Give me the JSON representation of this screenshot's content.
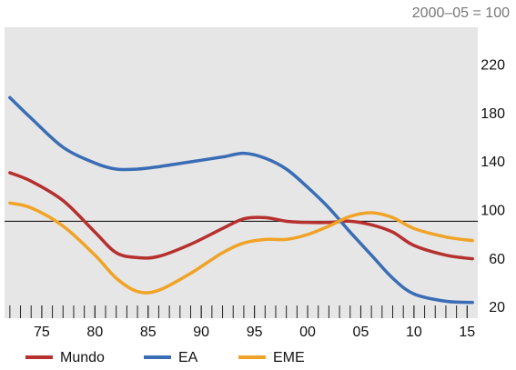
{
  "chart_data": {
    "type": "line",
    "unit_note": "2000–05 = 100",
    "x": [
      1972,
      1974,
      1977,
      1980,
      1982,
      1984,
      1986,
      1989,
      1992,
      1994,
      1996,
      1998,
      2000,
      2002,
      2004,
      2006,
      2008,
      2010,
      2013,
      2015.5
    ],
    "series": [
      {
        "name": "Mundo",
        "color": "#b5302e",
        "values": [
          140,
          133,
          117,
          91,
          74,
          70,
          71,
          81,
          94,
          102,
          103,
          100,
          99,
          99,
          100,
          97,
          91,
          80,
          72,
          69
        ]
      },
      {
        "name": "EA",
        "color": "#3a6db5",
        "values": [
          202,
          185,
          161,
          148,
          143,
          143,
          145,
          149,
          153,
          156,
          152,
          143,
          128,
          111,
          91,
          72,
          53,
          40,
          34,
          33
        ]
      },
      {
        "name": "EME",
        "color": "#f0a326",
        "values": [
          115,
          111,
          96,
          72,
          53,
          42,
          43,
          57,
          74,
          82,
          85,
          85,
          89,
          96,
          104,
          107,
          103,
          94,
          87,
          84
        ]
      }
    ],
    "xlim": [
      1971.5,
      2016
    ],
    "xticks": [
      {
        "value": 1975,
        "label": "75"
      },
      {
        "value": 1980,
        "label": "80"
      },
      {
        "value": 1985,
        "label": "85"
      },
      {
        "value": 1990,
        "label": "90"
      },
      {
        "value": 1995,
        "label": "95"
      },
      {
        "value": 2000,
        "label": "00"
      },
      {
        "value": 2005,
        "label": "05"
      },
      {
        "value": 2010,
        "label": "10"
      },
      {
        "value": 2015,
        "label": "15"
      }
    ],
    "xminorticks": [
      1972,
      1973,
      1974,
      1975,
      1976,
      1977,
      1978,
      1979,
      1980,
      1981,
      1982,
      1983,
      1984,
      1985,
      1986,
      1987,
      1988,
      1989,
      1990,
      1991,
      1992,
      1993,
      1994,
      1995,
      1996,
      1997,
      1998,
      1999,
      2000,
      2001,
      2002,
      2003,
      2004,
      2005,
      2006,
      2007,
      2008,
      2009,
      2010,
      2011,
      2012,
      2013,
      2014,
      2015
    ],
    "ylim": [
      20,
      260
    ],
    "yticks": [
      20,
      60,
      100,
      140,
      180,
      220
    ],
    "hline": 100,
    "legend": "bottom"
  }
}
